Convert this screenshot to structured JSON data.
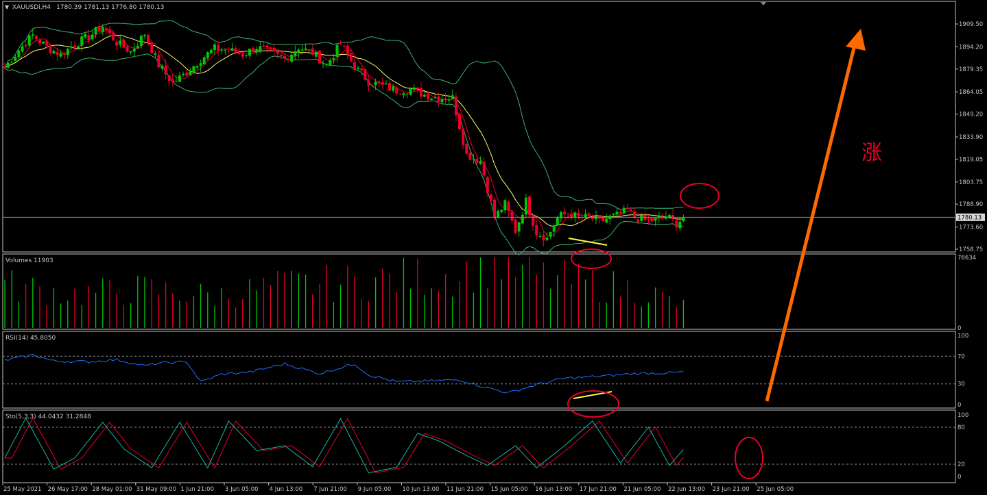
{
  "window": {
    "symbol_label": "XAUUSDi,H4",
    "ohlc": "1780.39 1781.13 1776.80 1780.13",
    "menu_arrow": "▼"
  },
  "price_axis": {
    "ticks": [
      "1909.50",
      "1894.20",
      "1879.35",
      "1864.05",
      "1849.20",
      "1833.90",
      "1819.05",
      "1803.75",
      "1788.90",
      "1773.60",
      "1758.75"
    ],
    "current_price": "1780.13",
    "range": [
      1758.75,
      1909.5
    ]
  },
  "volume_panel": {
    "label": "Volumes 11903",
    "ticks": [
      "76634",
      "0"
    ],
    "max": 76634
  },
  "rsi_panel": {
    "label": "RSI(14) 45.8050",
    "ticks": [
      "100",
      "70",
      "30",
      "0"
    ],
    "levels": [
      70,
      30
    ]
  },
  "sto_panel": {
    "label": "Sto(5,3,3) 44.0432 31.2848",
    "ticks": [
      "100",
      "80",
      "20",
      "0"
    ],
    "levels": [
      80,
      20
    ]
  },
  "time_axis": {
    "labels": [
      "25 May 2021",
      "26 May 17:00",
      "28 May 01:00",
      "31 May 09:00",
      "1 Jun 21:00",
      "3 Jun 05:00",
      "4 Jun 13:00",
      "7 Jun 21:00",
      "9 Jun 05:00",
      "10 Jun 13:00",
      "11 Jun 21:00",
      "15 Jun 05:00",
      "16 Jun 13:00",
      "17 Jun 21:00",
      "21 Jun 05:00",
      "22 Jun 13:00",
      "23 Jun 21:00",
      "25 Jun 05:00"
    ]
  },
  "annotation": {
    "text": "涨"
  },
  "colors": {
    "bull": "#00c800",
    "bear": "#e8002a",
    "band": "#3cb371",
    "ma_fast": "#e8002a",
    "ma_slow": "#ffff66",
    "rsi": "#1e6fff",
    "sto_main": "#20b2aa",
    "sto_signal": "#e8002a",
    "text": "#c8c8c8",
    "panel_border": "#c8c8c8",
    "circle": "#e8002a",
    "arrow": "#ff6a00",
    "divergence": "#ffff40"
  },
  "chart_data": {
    "type": "candlestick",
    "ohlc_anchors": [
      [
        0,
        1880
      ],
      [
        4,
        1892
      ],
      [
        8,
        1902
      ],
      [
        12,
        1894
      ],
      [
        16,
        1889
      ],
      [
        20,
        1896
      ],
      [
        24,
        1901
      ],
      [
        28,
        1908
      ],
      [
        32,
        1897
      ],
      [
        36,
        1891
      ],
      [
        40,
        1903
      ],
      [
        44,
        1882
      ],
      [
        48,
        1870
      ],
      [
        52,
        1877
      ],
      [
        56,
        1886
      ],
      [
        60,
        1893
      ],
      [
        64,
        1892
      ],
      [
        68,
        1889
      ],
      [
        72,
        1894
      ],
      [
        76,
        1890
      ],
      [
        80,
        1886
      ],
      [
        84,
        1894
      ],
      [
        88,
        1890
      ],
      [
        92,
        1882
      ],
      [
        96,
        1896
      ],
      [
        100,
        1881
      ],
      [
        104,
        1871
      ],
      [
        108,
        1868
      ],
      [
        112,
        1865
      ],
      [
        116,
        1866
      ],
      [
        120,
        1862
      ],
      [
        124,
        1860
      ],
      [
        128,
        1860
      ],
      [
        132,
        1822
      ],
      [
        136,
        1818
      ],
      [
        140,
        1780
      ],
      [
        143,
        1789
      ],
      [
        146,
        1771
      ],
      [
        149,
        1791
      ],
      [
        152,
        1770
      ],
      [
        155,
        1766
      ],
      [
        158,
        1780
      ],
      [
        161,
        1783
      ],
      [
        164,
        1780
      ],
      [
        167,
        1780
      ],
      [
        170,
        1777
      ],
      [
        173,
        1780
      ],
      [
        176,
        1782
      ],
      [
        178,
        1785
      ],
      [
        180,
        1780
      ],
      [
        183,
        1778
      ],
      [
        186,
        1778
      ],
      [
        189,
        1781
      ],
      [
        192,
        1776
      ],
      [
        194,
        1780
      ]
    ],
    "volume_anchors": [
      [
        0,
        44
      ],
      [
        20,
        35
      ],
      [
        40,
        40
      ],
      [
        60,
        33
      ],
      [
        80,
        44
      ],
      [
        100,
        47
      ],
      [
        120,
        54
      ],
      [
        130,
        56
      ],
      [
        140,
        71
      ],
      [
        148,
        55
      ],
      [
        155,
        52
      ],
      [
        170,
        45
      ],
      [
        184,
        37
      ],
      [
        194,
        22
      ]
    ],
    "rsi_anchors": [
      [
        0,
        64
      ],
      [
        8,
        72
      ],
      [
        14,
        63
      ],
      [
        24,
        62
      ],
      [
        32,
        65
      ],
      [
        40,
        56
      ],
      [
        44,
        60
      ],
      [
        52,
        62
      ],
      [
        56,
        33
      ],
      [
        62,
        44
      ],
      [
        70,
        47
      ],
      [
        80,
        59
      ],
      [
        90,
        45
      ],
      [
        100,
        59
      ],
      [
        104,
        43
      ],
      [
        112,
        33
      ],
      [
        120,
        34
      ],
      [
        130,
        36
      ],
      [
        136,
        27
      ],
      [
        144,
        17
      ],
      [
        152,
        29
      ],
      [
        160,
        38
      ],
      [
        170,
        41
      ],
      [
        180,
        45
      ],
      [
        190,
        46
      ],
      [
        194,
        47
      ]
    ],
    "sto_anchors": [
      [
        0,
        30
      ],
      [
        6,
        95
      ],
      [
        14,
        12
      ],
      [
        20,
        30
      ],
      [
        28,
        88
      ],
      [
        34,
        45
      ],
      [
        42,
        14
      ],
      [
        50,
        88
      ],
      [
        58,
        14
      ],
      [
        64,
        90
      ],
      [
        72,
        42
      ],
      [
        80,
        50
      ],
      [
        88,
        16
      ],
      [
        96,
        94
      ],
      [
        104,
        6
      ],
      [
        112,
        15
      ],
      [
        118,
        70
      ],
      [
        124,
        58
      ],
      [
        132,
        34
      ],
      [
        138,
        18
      ],
      [
        146,
        50
      ],
      [
        152,
        14
      ],
      [
        160,
        50
      ],
      [
        168,
        90
      ],
      [
        176,
        22
      ],
      [
        184,
        80
      ],
      [
        190,
        18
      ],
      [
        194,
        44
      ]
    ]
  }
}
